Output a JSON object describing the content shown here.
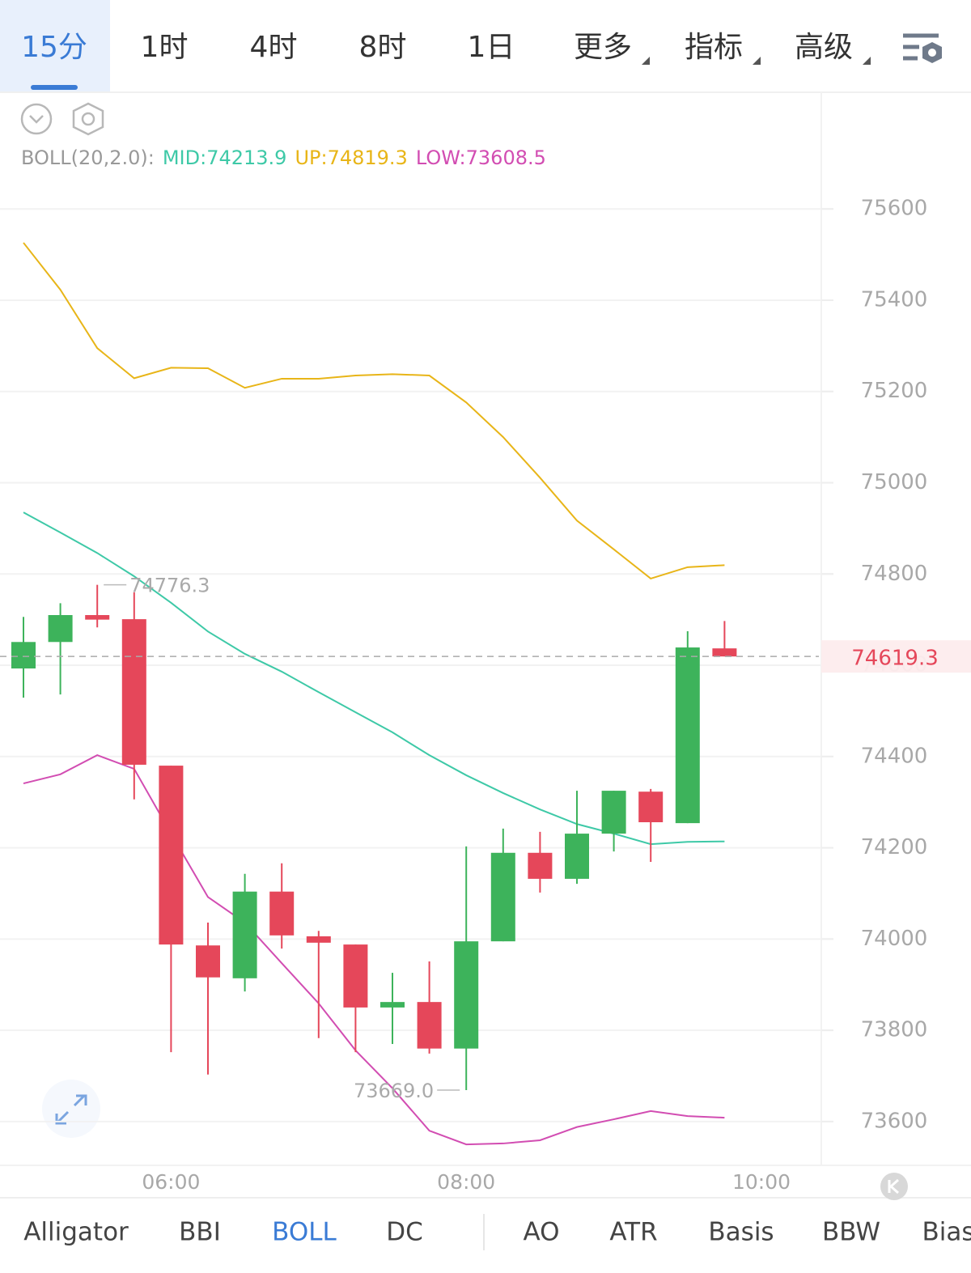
{
  "tabs": [
    "15分",
    "1时",
    "4时",
    "8时",
    "1日",
    "更多",
    "指标",
    "高级"
  ],
  "indicator_tabs": [
    "Alligator",
    "BBI",
    "BOLL",
    "DC",
    "AO",
    "ATR",
    "Basis",
    "BBW",
    "Bias"
  ],
  "chart_data": {
    "type": "candlestick",
    "indicator": "BOLL(20,2.0):",
    "open": [
      74593,
      74651,
      74710,
      74701,
      74380,
      73986,
      73914,
      74104,
      74006,
      73988,
      73850,
      73862,
      73760,
      73995,
      74189,
      74132,
      74231,
      74323,
      74254,
      74637
    ],
    "high": [
      74706,
      74736,
      74776.3,
      74760,
      74380,
      74036,
      74143,
      74166,
      74018,
      73988,
      73926,
      73951,
      74203,
      74242,
      74235,
      74325,
      74325,
      74329,
      74674.5,
      74697
    ],
    "low": [
      74529,
      74536,
      74683,
      74306,
      73752,
      73703,
      73885,
      73979,
      73783,
      73752,
      73770,
      73749,
      73669,
      73995,
      74102,
      74121,
      74192,
      74169,
      74254,
      74619.3
    ],
    "close": [
      74651,
      74710,
      74700,
      74382,
      73988,
      73916,
      74104,
      74008,
      73992,
      73850,
      73862,
      73760,
      73995,
      74189,
      74132,
      74231,
      74325,
      74256,
      74639,
      74619.3
    ],
    "up_color": "#3db35b",
    "down_color": "#e5475a",
    "max_label": "74776.3",
    "min_label": "73669.0",
    "series": [
      {
        "name": "MID:",
        "color": "#3ec9a7",
        "values": [
          74935,
          74891,
          74846,
          74795,
          74737,
          74674,
          74625,
          74586,
          74541,
          74497,
          74453,
          74403,
          74359,
          74320,
          74284,
          74252,
          74231,
          74208,
          74213,
          74213.9
        ]
      },
      {
        "name": "UP:",
        "color": "#e8b518",
        "values": [
          75526,
          75423,
          75295,
          75229,
          75252,
          75251,
          75208,
          75228,
          75228,
          75235,
          75238,
          75235,
          75176,
          75100,
          75011,
          74917,
          74854,
          74790,
          74815,
          74819.3
        ]
      },
      {
        "name": "LOW:",
        "color": "#d24db2",
        "values": [
          74341,
          74361,
          74403,
          74373,
          74231,
          74092,
          74036,
          73947,
          73859,
          73756,
          73673,
          73580,
          73550,
          73552,
          73559,
          73588,
          73605,
          73623,
          73612,
          73608.5
        ]
      }
    ],
    "ylim": [
      73504,
      75854
    ],
    "yticks": [
      73600,
      73800,
      74000,
      74200,
      74400,
      74600,
      74800,
      75000,
      75200,
      75400,
      75600
    ],
    "xticks": [
      {
        "value": 4,
        "label": "06:00"
      },
      {
        "value": 12,
        "label": "08:00"
      },
      {
        "value": 20,
        "label": "10:00"
      }
    ],
    "grid": true
  }
}
